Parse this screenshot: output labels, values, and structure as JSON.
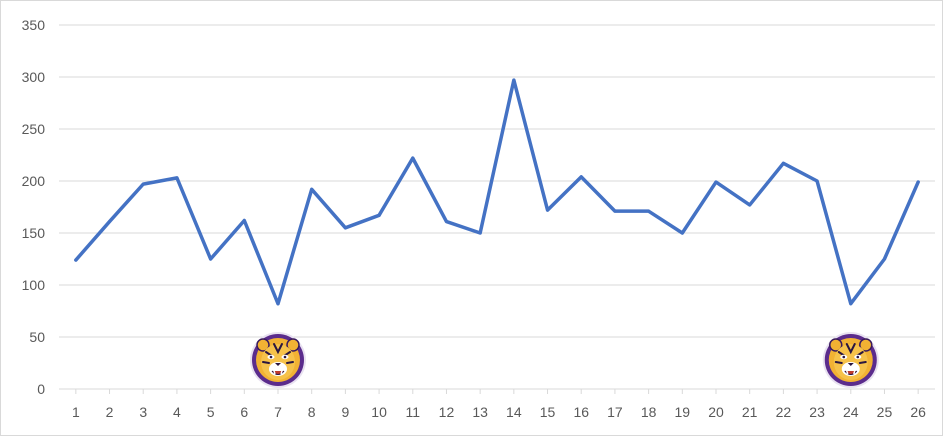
{
  "chart_data": {
    "type": "line",
    "title": "",
    "xlabel": "",
    "ylabel": "",
    "x": [
      1,
      2,
      3,
      4,
      5,
      6,
      7,
      8,
      9,
      10,
      11,
      12,
      13,
      14,
      15,
      16,
      17,
      18,
      19,
      20,
      21,
      22,
      23,
      24,
      25,
      26
    ],
    "series": [
      {
        "values": [
          124,
          161,
          197,
          203,
          125,
          162,
          82,
          192,
          155,
          167,
          222,
          161,
          150,
          297,
          172,
          204,
          171,
          171,
          150,
          199,
          177,
          217,
          200,
          82,
          125,
          199
        ],
        "color": "#4472c4"
      }
    ],
    "ylim": [
      0,
      350
    ],
    "yticks": [
      0,
      50,
      100,
      150,
      200,
      250,
      300,
      350
    ],
    "grid": true,
    "legend": "none",
    "annotations": [
      {
        "kind": "image",
        "icon": "tiger-logo-icon",
        "at_x": 7
      },
      {
        "kind": "image",
        "icon": "tiger-logo-icon",
        "at_x": 24
      }
    ]
  }
}
